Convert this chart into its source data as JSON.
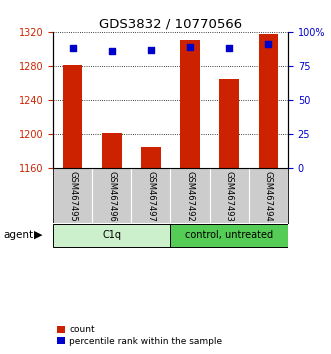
{
  "title": "GDS3832 / 10770566",
  "samples": [
    "GSM467495",
    "GSM467496",
    "GSM467497",
    "GSM467492",
    "GSM467493",
    "GSM467494"
  ],
  "counts": [
    1281,
    1202,
    1185,
    1311,
    1265,
    1318
  ],
  "percentile_ranks": [
    88,
    86,
    87,
    89,
    88,
    91
  ],
  "ylim_left": [
    1160,
    1320
  ],
  "ylim_right": [
    0,
    100
  ],
  "yticks_left": [
    1160,
    1200,
    1240,
    1280,
    1320
  ],
  "yticks_right": [
    0,
    25,
    50,
    75,
    100
  ],
  "ytick_labels_right": [
    "0",
    "25",
    "50",
    "75",
    "100%"
  ],
  "bar_color": "#cc2200",
  "marker_color": "#0000cc",
  "groups": [
    {
      "label": "C1q",
      "indices": [
        0,
        1,
        2
      ],
      "color": "#ccf0cc"
    },
    {
      "label": "control, untreated",
      "indices": [
        3,
        4,
        5
      ],
      "color": "#55cc55"
    }
  ],
  "agent_label": "agent",
  "legend_count_label": "count",
  "legend_percentile_label": "percentile rank within the sample",
  "background_color": "#ffffff",
  "plot_bg_color": "#ffffff",
  "tick_area_color": "#cccccc"
}
